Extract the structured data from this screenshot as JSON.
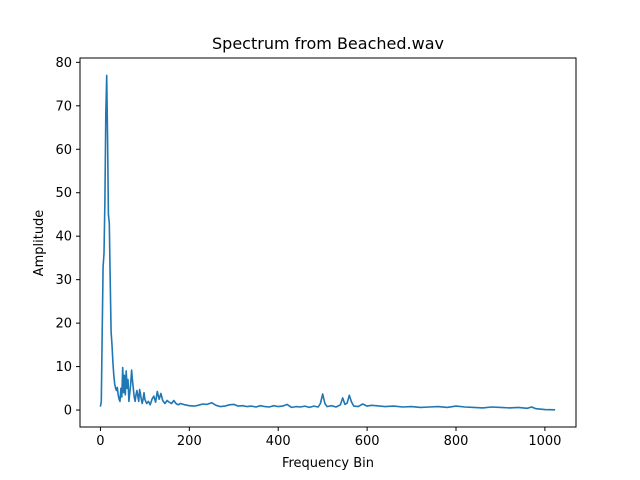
{
  "chart_data": {
    "type": "line",
    "title": "Spectrum from Beached.wav",
    "xlabel": "Frequency Bin",
    "ylabel": "Amplitude",
    "xlim": [
      -46,
      1070
    ],
    "ylim": [
      -3.9,
      81
    ],
    "xticks": [
      0,
      200,
      400,
      600,
      800,
      1000
    ],
    "yticks": [
      0,
      10,
      20,
      30,
      40,
      50,
      60,
      70,
      80
    ],
    "grid": false,
    "color": "#1f77b4",
    "series": [
      {
        "x": [
          0,
          2,
          4,
          6,
          8,
          10,
          12,
          14,
          16,
          18,
          20,
          22,
          24,
          26,
          28,
          30,
          32,
          34,
          36,
          38,
          40,
          42,
          44,
          46,
          48,
          50,
          52,
          54,
          56,
          58,
          60,
          62,
          64,
          66,
          68,
          70,
          72,
          74,
          76,
          78,
          80,
          82,
          84,
          86,
          88,
          90,
          92,
          94,
          96,
          98,
          100,
          104,
          108,
          112,
          116,
          120,
          124,
          128,
          132,
          136,
          140,
          145,
          150,
          155,
          160,
          165,
          170,
          175,
          180,
          190,
          200,
          210,
          220,
          230,
          240,
          250,
          260,
          270,
          280,
          290,
          300,
          310,
          320,
          330,
          340,
          350,
          360,
          370,
          380,
          390,
          400,
          410,
          420,
          430,
          440,
          450,
          460,
          470,
          480,
          490,
          495,
          500,
          505,
          510,
          520,
          530,
          540,
          545,
          550,
          555,
          560,
          565,
          570,
          580,
          590,
          600,
          610,
          620,
          640,
          660,
          680,
          700,
          720,
          740,
          760,
          780,
          800,
          820,
          840,
          860,
          880,
          900,
          920,
          940,
          960,
          970,
          980,
          1000,
          1023
        ],
        "y": [
          0.8,
          2,
          18,
          33,
          36,
          48,
          68,
          77,
          62,
          45,
          43,
          30,
          18,
          15,
          11,
          8,
          6,
          5,
          4.5,
          5.2,
          3.5,
          2.5,
          2,
          5,
          3,
          9.8,
          4,
          8,
          3.5,
          9,
          5,
          7,
          2,
          4,
          6,
          9.2,
          7,
          5,
          3,
          2,
          3.5,
          4.5,
          3.2,
          2,
          4.7,
          3.8,
          2.5,
          1.5,
          2.5,
          4,
          2.4,
          1.5,
          2,
          1.2,
          2.5,
          3.2,
          1.8,
          4.3,
          2.5,
          3.8,
          2.2,
          1.5,
          2.2,
          1.8,
          1.5,
          2.2,
          1.5,
          1.2,
          1.5,
          1.2,
          1,
          0.9,
          1.1,
          1.4,
          1.3,
          1.7,
          1.1,
          0.8,
          0.9,
          1.2,
          1.3,
          0.9,
          1,
          0.8,
          0.9,
          0.7,
          1,
          0.8,
          0.7,
          1,
          0.8,
          0.9,
          1.3,
          0.6,
          0.8,
          0.7,
          0.9,
          0.6,
          0.9,
          0.7,
          1.5,
          3.7,
          1.5,
          0.8,
          1,
          0.7,
          1.2,
          2.8,
          1.3,
          1.6,
          3.4,
          1.8,
          0.9,
          0.8,
          1.4,
          0.9,
          1.1,
          1,
          0.8,
          0.9,
          0.7,
          0.8,
          0.6,
          0.7,
          0.8,
          0.6,
          0.9,
          0.7,
          0.6,
          0.5,
          0.7,
          0.6,
          0.5,
          0.6,
          0.4,
          0.7,
          0.3,
          0.1,
          0.05
        ]
      }
    ]
  }
}
